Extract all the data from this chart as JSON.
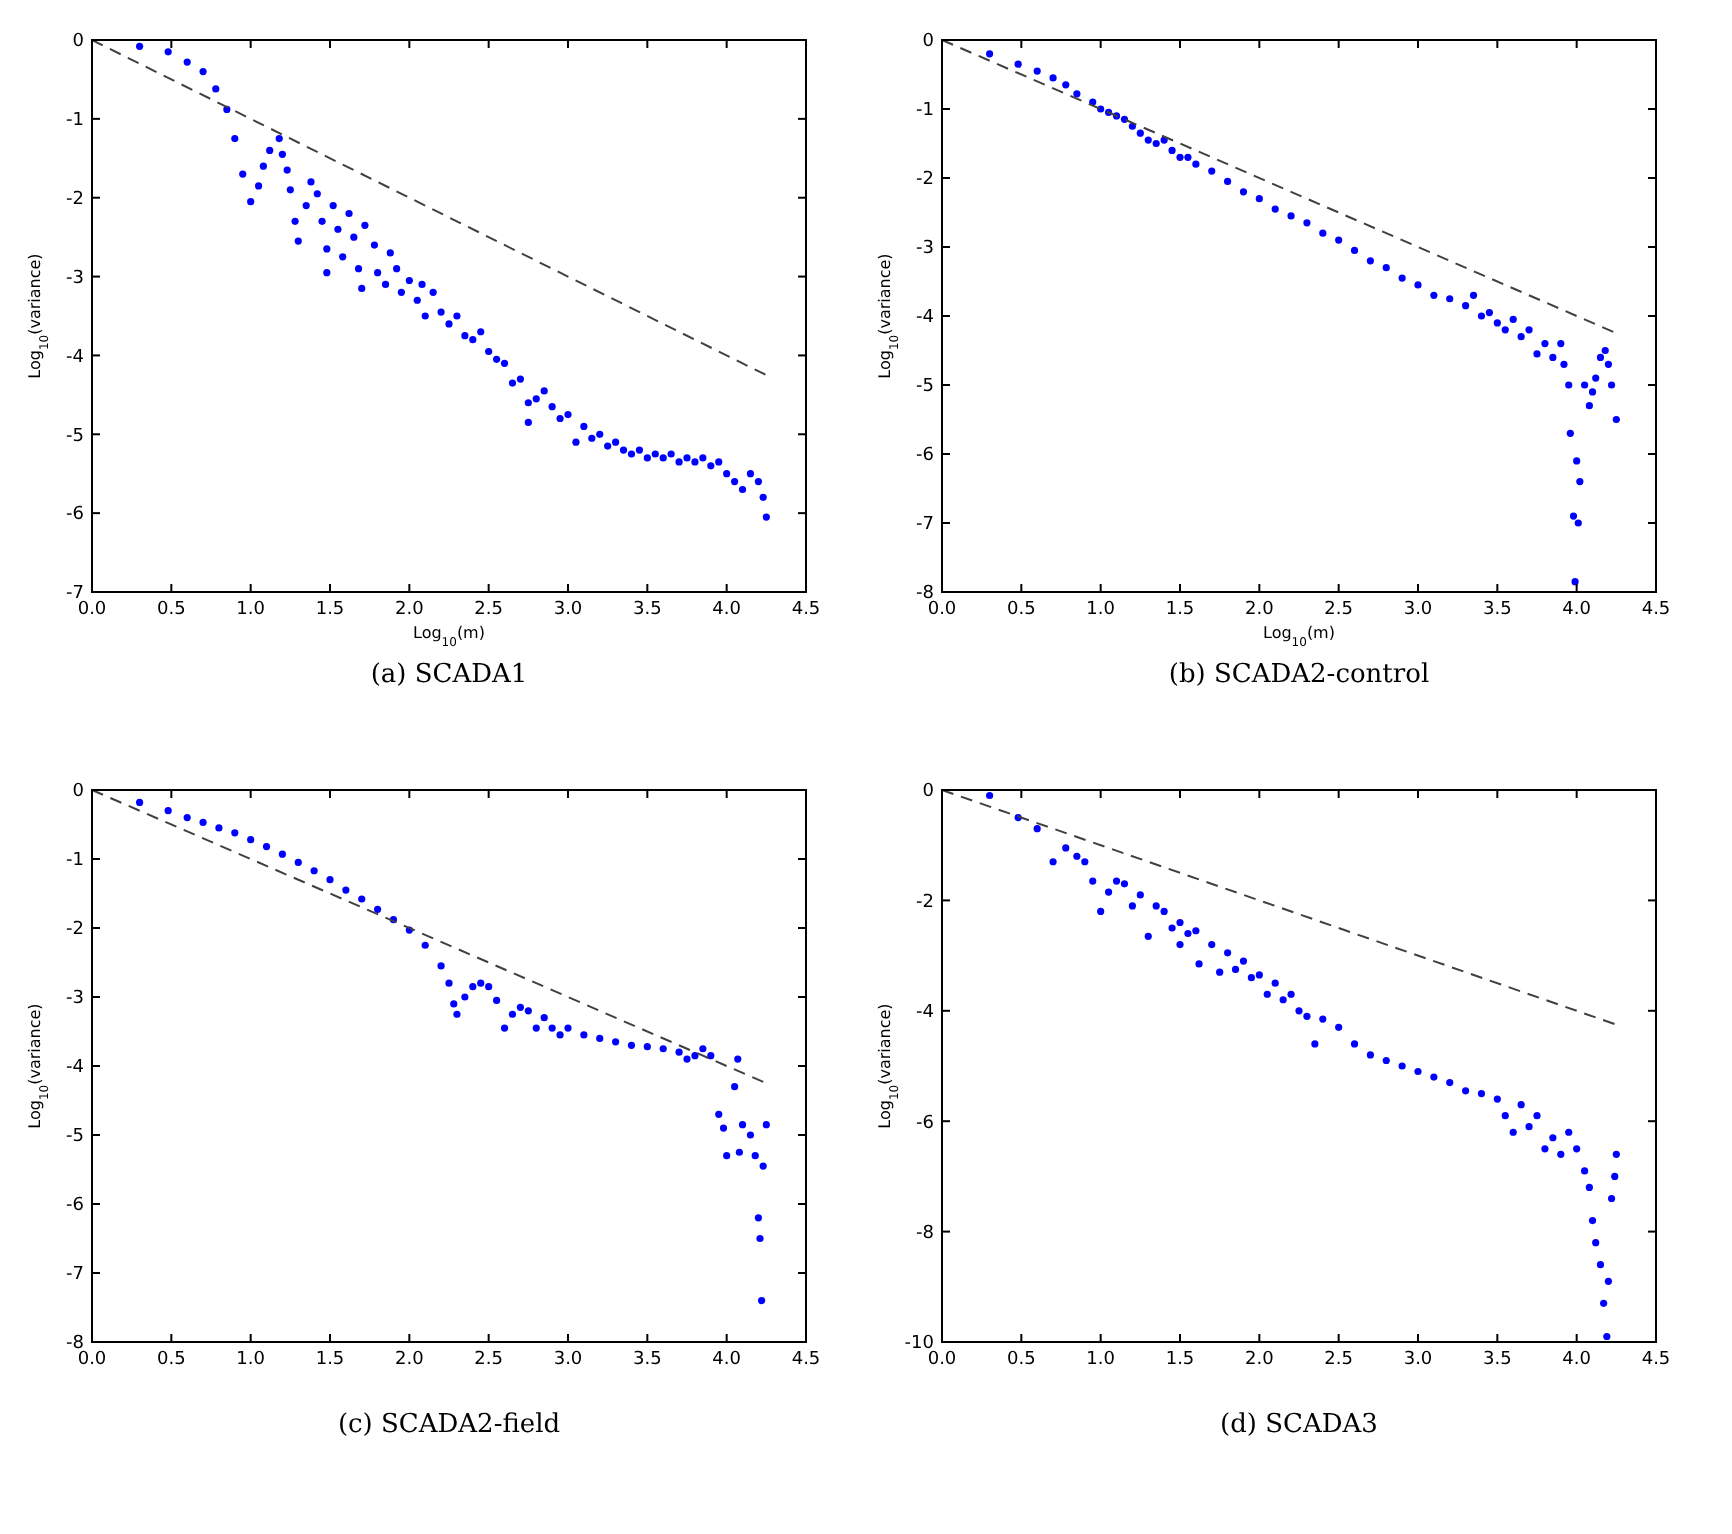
{
  "chart_data": [
    {
      "type": "scatter",
      "title": "(a) SCADA1",
      "xlabel": "Log$_{10}$(m)",
      "ylabel": "Log$_{10}$(variance)",
      "marker": "circle",
      "xlim": [
        0,
        4.5
      ],
      "xticks": [
        {
          "value": 0,
          "label": "0.0"
        },
        {
          "value": 0.5,
          "label": "0.5"
        },
        {
          "value": 1,
          "label": "1.0"
        },
        {
          "value": 1.5,
          "label": "1.5"
        },
        {
          "value": 2,
          "label": "2.0"
        },
        {
          "value": 2.5,
          "label": "2.5"
        },
        {
          "value": 3,
          "label": "3.0"
        },
        {
          "value": 3.5,
          "label": "3.5"
        },
        {
          "value": 4,
          "label": "4.0"
        },
        {
          "value": 4.5,
          "label": "4.5"
        }
      ],
      "ylim": [
        -7,
        0
      ],
      "yticks": [
        -7,
        -6,
        -5,
        -4,
        -3,
        -2,
        -1,
        0
      ],
      "series": [
        {
          "color": "#0000ff",
          "x": [
            0.3,
            0.48,
            0.6,
            0.7,
            0.78,
            0.85,
            0.9,
            0.95,
            1.0,
            1.05,
            1.08,
            1.12,
            1.18,
            1.2,
            1.23,
            1.25,
            1.28,
            1.3,
            1.35,
            1.38,
            1.42,
            1.45,
            1.48,
            1.48,
            1.52,
            1.55,
            1.58,
            1.62,
            1.65,
            1.68,
            1.7,
            1.72,
            1.78,
            1.8,
            1.85,
            1.88,
            1.92,
            1.95,
            2.0,
            2.05,
            2.08,
            2.1,
            2.15,
            2.2,
            2.25,
            2.3,
            2.35,
            2.4,
            2.45,
            2.5,
            2.55,
            2.6,
            2.65,
            2.7,
            2.75,
            2.75,
            2.8,
            2.85,
            2.9,
            2.95,
            3.0,
            3.05,
            3.1,
            3.15,
            3.2,
            3.25,
            3.3,
            3.35,
            3.4,
            3.45,
            3.5,
            3.55,
            3.6,
            3.65,
            3.7,
            3.75,
            3.8,
            3.85,
            3.9,
            3.95,
            4.0,
            4.05,
            4.1,
            4.15,
            4.2,
            4.23,
            4.25
          ],
          "values": [
            -0.08,
            -0.15,
            -0.28,
            -0.4,
            -0.62,
            -0.88,
            -1.25,
            -1.7,
            -2.05,
            -1.85,
            -1.6,
            -1.4,
            -1.25,
            -1.45,
            -1.65,
            -1.9,
            -2.3,
            -2.55,
            -2.1,
            -1.8,
            -1.95,
            -2.3,
            -2.65,
            -2.95,
            -2.1,
            -2.4,
            -2.75,
            -2.2,
            -2.5,
            -2.9,
            -3.15,
            -2.35,
            -2.6,
            -2.95,
            -3.1,
            -2.7,
            -2.9,
            -3.2,
            -3.05,
            -3.3,
            -3.1,
            -3.5,
            -3.2,
            -3.45,
            -3.6,
            -3.5,
            -3.75,
            -3.8,
            -3.7,
            -3.95,
            -4.05,
            -4.1,
            -4.35,
            -4.3,
            -4.6,
            -4.85,
            -4.55,
            -4.45,
            -4.65,
            -4.8,
            -4.75,
            -5.1,
            -4.9,
            -5.05,
            -5.0,
            -5.15,
            -5.1,
            -5.2,
            -5.25,
            -5.2,
            -5.3,
            -5.25,
            -5.3,
            -5.25,
            -5.35,
            -5.3,
            -5.35,
            -5.3,
            -5.4,
            -5.35,
            -5.5,
            -5.6,
            -5.7,
            -5.5,
            -5.6,
            -5.8,
            -6.05
          ]
        },
        {
          "type": "line",
          "marker": "none",
          "color": "#404040",
          "line_style": "dashed",
          "x": [
            0,
            4.25
          ],
          "values": [
            0,
            -4.25
          ]
        }
      ]
    },
    {
      "type": "scatter",
      "title": "(b) SCADA2-control",
      "xlabel": "Log$_{10}$(m)",
      "ylabel": "Log$_{10}$(variance)",
      "marker": "circle",
      "xlim": [
        0,
        4.5
      ],
      "xticks": [
        {
          "value": 0,
          "label": "0.0"
        },
        {
          "value": 0.5,
          "label": "0.5"
        },
        {
          "value": 1,
          "label": "1.0"
        },
        {
          "value": 1.5,
          "label": "1.5"
        },
        {
          "value": 2,
          "label": "2.0"
        },
        {
          "value": 2.5,
          "label": "2.5"
        },
        {
          "value": 3,
          "label": "3.0"
        },
        {
          "value": 3.5,
          "label": "3.5"
        },
        {
          "value": 4,
          "label": "4.0"
        },
        {
          "value": 4.5,
          "label": "4.5"
        }
      ],
      "ylim": [
        -8,
        0
      ],
      "yticks": [
        -8,
        -7,
        -6,
        -5,
        -4,
        -3,
        -2,
        -1,
        0
      ],
      "series": [
        {
          "color": "#0000ff",
          "x": [
            0.3,
            0.48,
            0.6,
            0.7,
            0.78,
            0.85,
            0.95,
            1.0,
            1.05,
            1.1,
            1.15,
            1.2,
            1.25,
            1.3,
            1.35,
            1.4,
            1.45,
            1.5,
            1.55,
            1.6,
            1.7,
            1.8,
            1.9,
            2.0,
            2.1,
            2.2,
            2.3,
            2.4,
            2.5,
            2.6,
            2.7,
            2.8,
            2.9,
            3.0,
            3.1,
            3.2,
            3.3,
            3.35,
            3.4,
            3.45,
            3.5,
            3.55,
            3.6,
            3.65,
            3.7,
            3.75,
            3.8,
            3.85,
            3.9,
            3.92,
            3.95,
            3.96,
            3.98,
            4.0,
            4.01,
            4.02,
            3.99,
            4.05,
            4.08,
            4.1,
            4.12,
            4.15,
            4.18,
            4.2,
            4.22,
            4.25
          ],
          "values": [
            -0.2,
            -0.35,
            -0.45,
            -0.55,
            -0.65,
            -0.78,
            -0.9,
            -1.0,
            -1.05,
            -1.1,
            -1.15,
            -1.25,
            -1.35,
            -1.45,
            -1.5,
            -1.45,
            -1.6,
            -1.7,
            -1.7,
            -1.8,
            -1.9,
            -2.05,
            -2.2,
            -2.3,
            -2.45,
            -2.55,
            -2.65,
            -2.8,
            -2.9,
            -3.05,
            -3.2,
            -3.3,
            -3.45,
            -3.55,
            -3.7,
            -3.75,
            -3.85,
            -3.7,
            -4.0,
            -3.95,
            -4.1,
            -4.2,
            -4.05,
            -4.3,
            -4.2,
            -4.55,
            -4.4,
            -4.6,
            -4.4,
            -4.7,
            -5.0,
            -5.7,
            -6.9,
            -6.1,
            -7.0,
            -6.4,
            -7.85,
            -5.0,
            -5.3,
            -5.1,
            -4.9,
            -4.6,
            -4.5,
            -4.7,
            -5.0,
            -5.5
          ]
        },
        {
          "type": "line",
          "marker": "none",
          "color": "#404040",
          "line_style": "dashed",
          "x": [
            0,
            4.25
          ],
          "values": [
            0,
            -4.25
          ]
        }
      ]
    },
    {
      "type": "scatter",
      "title": "(c) SCADA2-field",
      "ylabel": "Log$_{10}$(variance)",
      "marker": "circle",
      "xlim": [
        0,
        4.5
      ],
      "xticks": [
        {
          "value": 0,
          "label": "0.0"
        },
        {
          "value": 0.5,
          "label": "0.5"
        },
        {
          "value": 1,
          "label": "1.0"
        },
        {
          "value": 1.5,
          "label": "1.5"
        },
        {
          "value": 2,
          "label": "2.0"
        },
        {
          "value": 2.5,
          "label": "2.5"
        },
        {
          "value": 3,
          "label": "3.0"
        },
        {
          "value": 3.5,
          "label": "3.5"
        },
        {
          "value": 4,
          "label": "4.0"
        },
        {
          "value": 4.5,
          "label": "4.5"
        }
      ],
      "ylim": [
        -8,
        0
      ],
      "yticks": [
        -8,
        -7,
        -6,
        -5,
        -4,
        -3,
        -2,
        -1,
        0
      ],
      "series": [
        {
          "color": "#0000ff",
          "x": [
            0.3,
            0.48,
            0.6,
            0.7,
            0.8,
            0.9,
            1.0,
            1.1,
            1.2,
            1.3,
            1.4,
            1.5,
            1.6,
            1.7,
            1.8,
            1.9,
            2.0,
            2.1,
            2.2,
            2.25,
            2.28,
            2.3,
            2.35,
            2.4,
            2.45,
            2.5,
            2.55,
            2.6,
            2.65,
            2.7,
            2.75,
            2.8,
            2.85,
            2.9,
            2.95,
            3.0,
            3.1,
            3.2,
            3.3,
            3.4,
            3.5,
            3.6,
            3.7,
            3.75,
            3.8,
            3.85,
            3.9,
            3.95,
            3.98,
            4.0,
            4.05,
            4.07,
            4.08,
            4.1,
            4.15,
            4.18,
            4.2,
            4.21,
            4.22,
            4.23,
            4.25
          ],
          "values": [
            -0.18,
            -0.3,
            -0.4,
            -0.47,
            -0.55,
            -0.62,
            -0.72,
            -0.82,
            -0.93,
            -1.05,
            -1.17,
            -1.3,
            -1.45,
            -1.58,
            -1.73,
            -1.88,
            -2.03,
            -2.25,
            -2.55,
            -2.8,
            -3.1,
            -3.25,
            -3.0,
            -2.85,
            -2.8,
            -2.85,
            -3.05,
            -3.45,
            -3.25,
            -3.15,
            -3.2,
            -3.45,
            -3.3,
            -3.45,
            -3.55,
            -3.45,
            -3.55,
            -3.6,
            -3.65,
            -3.7,
            -3.72,
            -3.75,
            -3.8,
            -3.9,
            -3.85,
            -3.75,
            -3.85,
            -4.7,
            -4.9,
            -5.3,
            -4.3,
            -3.9,
            -5.25,
            -4.85,
            -5.0,
            -5.3,
            -6.2,
            -6.5,
            -7.4,
            -5.45,
            -4.85
          ]
        },
        {
          "type": "line",
          "marker": "none",
          "color": "#404040",
          "line_style": "dashed",
          "x": [
            0,
            4.25
          ],
          "values": [
            0,
            -4.25
          ]
        }
      ]
    },
    {
      "type": "scatter",
      "title": "(d) SCADA3",
      "ylabel": "Log$_{10}$(variance)",
      "marker": "circle",
      "xlim": [
        0,
        4.5
      ],
      "xticks": [
        {
          "value": 0,
          "label": "0.0"
        },
        {
          "value": 0.5,
          "label": "0.5"
        },
        {
          "value": 1,
          "label": "1.0"
        },
        {
          "value": 1.5,
          "label": "1.5"
        },
        {
          "value": 2,
          "label": "2.0"
        },
        {
          "value": 2.5,
          "label": "2.5"
        },
        {
          "value": 3,
          "label": "3.0"
        },
        {
          "value": 3.5,
          "label": "3.5"
        },
        {
          "value": 4,
          "label": "4.0"
        },
        {
          "value": 4.5,
          "label": "4.5"
        }
      ],
      "ylim": [
        -10,
        0
      ],
      "yticks": [
        -10,
        -8,
        -6,
        -4,
        -2,
        0
      ],
      "series": [
        {
          "color": "#0000ff",
          "x": [
            0.3,
            0.48,
            0.6,
            0.7,
            0.78,
            0.85,
            0.9,
            0.95,
            1.0,
            1.05,
            1.1,
            1.15,
            1.2,
            1.25,
            1.3,
            1.35,
            1.4,
            1.45,
            1.5,
            1.5,
            1.55,
            1.6,
            1.62,
            1.7,
            1.75,
            1.8,
            1.85,
            1.9,
            1.95,
            2.0,
            2.05,
            2.1,
            2.15,
            2.2,
            2.25,
            2.3,
            2.35,
            2.4,
            2.5,
            2.6,
            2.7,
            2.8,
            2.9,
            3.0,
            3.1,
            3.2,
            3.3,
            3.4,
            3.5,
            3.55,
            3.6,
            3.65,
            3.7,
            3.75,
            3.8,
            3.85,
            3.9,
            3.95,
            4.0,
            4.05,
            4.08,
            4.1,
            4.12,
            4.15,
            4.17,
            4.19,
            4.2,
            4.22,
            4.24,
            4.25
          ],
          "values": [
            -0.1,
            -0.5,
            -0.7,
            -1.3,
            -1.05,
            -1.2,
            -1.3,
            -1.65,
            -2.2,
            -1.85,
            -1.65,
            -1.7,
            -2.1,
            -1.9,
            -2.65,
            -2.1,
            -2.2,
            -2.5,
            -2.4,
            -2.8,
            -2.6,
            -2.55,
            -3.15,
            -2.8,
            -3.3,
            -2.95,
            -3.25,
            -3.1,
            -3.4,
            -3.35,
            -3.7,
            -3.5,
            -3.8,
            -3.7,
            -4.0,
            -4.1,
            -4.6,
            -4.15,
            -4.3,
            -4.6,
            -4.8,
            -4.9,
            -5.0,
            -5.1,
            -5.2,
            -5.3,
            -5.45,
            -5.5,
            -5.6,
            -5.9,
            -6.2,
            -5.7,
            -6.1,
            -5.9,
            -6.5,
            -6.3,
            -6.6,
            -6.2,
            -6.5,
            -6.9,
            -7.2,
            -7.8,
            -8.2,
            -8.6,
            -9.3,
            -9.9,
            -8.9,
            -7.4,
            -7.0,
            -6.6
          ]
        },
        {
          "type": "line",
          "marker": "none",
          "color": "#404040",
          "line_style": "dashed",
          "x": [
            0,
            4.25
          ],
          "values": [
            0,
            -4.25
          ]
        }
      ]
    }
  ]
}
